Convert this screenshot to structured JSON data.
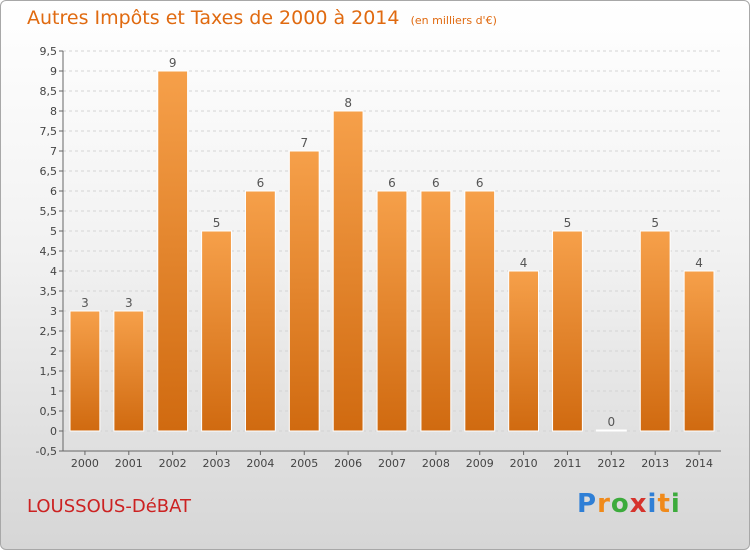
{
  "title": "Autres Impôts et Taxes de 2000 à 2014",
  "unit": "(en milliers d'€)",
  "commune": "LOUSSOUS-DéBAT",
  "logo": {
    "letters": [
      "P",
      "r",
      "o",
      "x",
      "i",
      "t",
      "i"
    ],
    "colors": [
      "#2f7fd6",
      "#f08a1a",
      "#3cab3c",
      "#d6332c",
      "#2f7fd6",
      "#f08a1a",
      "#3cab3c"
    ]
  },
  "colors": {
    "bar_top": "#f6a04a",
    "bar_bottom": "#d06a10",
    "title": "#e06a10",
    "commune": "#cc2222"
  },
  "chart_data": {
    "type": "bar",
    "categories": [
      "2000",
      "2001",
      "2002",
      "2003",
      "2004",
      "2005",
      "2006",
      "2007",
      "2008",
      "2009",
      "2010",
      "2011",
      "2012",
      "2013",
      "2014"
    ],
    "values": [
      3,
      3,
      9,
      5,
      6,
      7,
      8,
      6,
      6,
      6,
      4,
      5,
      0,
      5,
      4
    ],
    "data_labels": [
      "3",
      "3",
      "9",
      "5",
      "6",
      "7",
      "8",
      "6",
      "6",
      "6",
      "4",
      "5",
      "0",
      "5",
      "4"
    ],
    "y_ticks": [
      "-0,5",
      "0",
      "0,5",
      "1",
      "1,5",
      "2",
      "2,5",
      "3",
      "3,5",
      "4",
      "4,5",
      "5",
      "5,5",
      "6",
      "6,5",
      "7",
      "7,5",
      "8",
      "8,5",
      "9",
      "9,5"
    ],
    "ylim": [
      -0.5,
      9.5
    ],
    "grid": true
  }
}
